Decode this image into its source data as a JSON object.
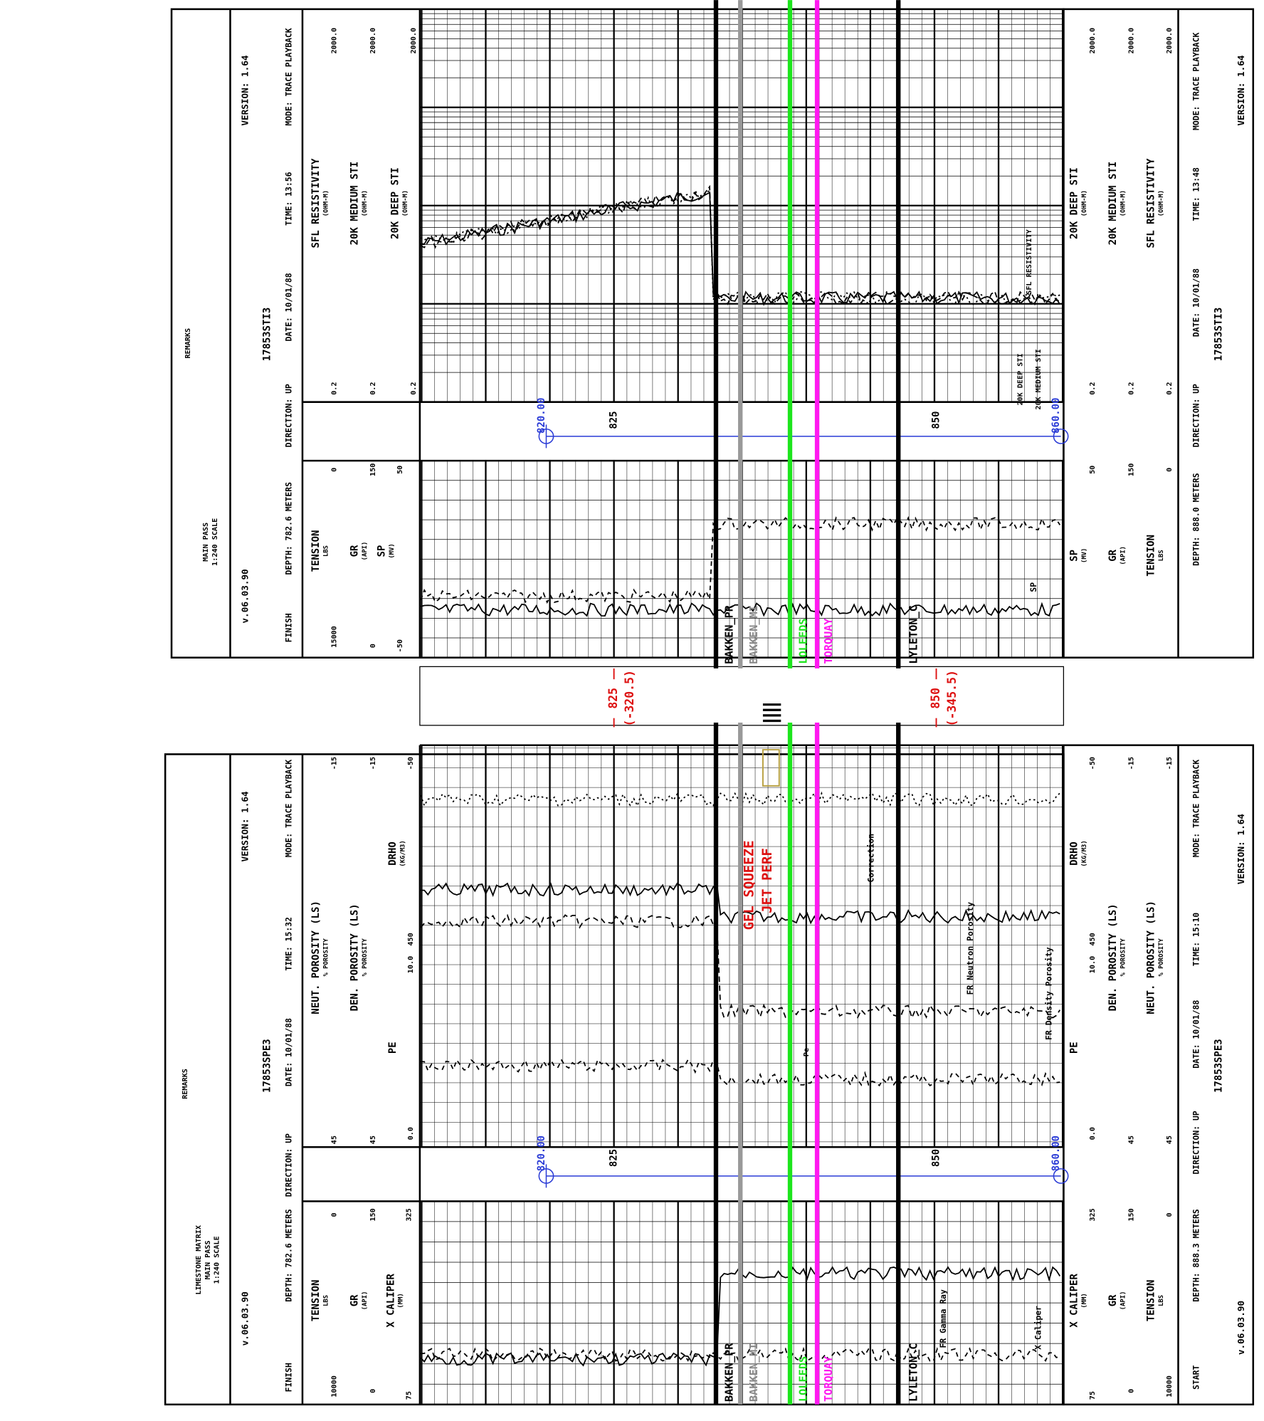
{
  "top_log": {
    "remarks": "REMARKS",
    "pass": "MAIN PASS",
    "scale": "1:240 SCALE",
    "software": "v.06.03.90",
    "version": "VERSION: 1.64",
    "file": "17853STI3",
    "status": "FINISH",
    "depth": "DEPTH: 782.6 METERS",
    "direction": "DIRECTION: UP",
    "date": "DATE: 10/01/88",
    "time": "TIME: 13:56",
    "mode": "MODE: TRACE PLAYBACK",
    "curves": [
      {
        "name": "TENSION",
        "unit": "LBS",
        "left": "15000",
        "right": "0"
      },
      {
        "name": "GR",
        "unit": "(API)",
        "left": "0",
        "right": "150"
      },
      {
        "name": "SP",
        "unit": "(MV)",
        "left": "-50",
        "right": "50"
      },
      {
        "name": "SFL RESISTIVITY",
        "unit": "(OHM-M)",
        "left": "0.2",
        "right": "2000.0"
      },
      {
        "name": "20K MEDIUM STI",
        "unit": "(OHM-M)",
        "left": "0.2",
        "right": "2000.0"
      },
      {
        "name": "20K DEEP STI",
        "unit": "(OHM-M)",
        "left": "0.2",
        "right": "2000.0"
      }
    ],
    "right": {
      "curves": [
        {
          "name": "20K DEEP STI",
          "unit": "(OHM-M)",
          "left": "0.2",
          "right": "2000.0"
        },
        {
          "name": "20K MEDIUM STI",
          "unit": "(OHM-M)",
          "left": "0.2",
          "right": "2000.0"
        },
        {
          "name": "SFL RESISTIVITY",
          "unit": "(OHM-M)",
          "left": "0.2",
          "right": "2000.0"
        },
        {
          "name": "SP",
          "unit": "(MV)",
          "right": "50"
        },
        {
          "name": "GR",
          "unit": "(API)",
          "right": "150"
        },
        {
          "name": "TENSION",
          "unit": "LBS",
          "right": "0"
        }
      ],
      "depth": "DEPTH: 888.0 METERS",
      "direction": "DIRECTION: UP",
      "date": "DATE: 10/01/88",
      "time": "TIME: 13:48",
      "mode": "MODE: TRACE PLAYBACK",
      "version": "VERSION: 1.64",
      "file": "17853STI3"
    },
    "depth_track": [
      "820.00",
      "825",
      "850",
      "860.00"
    ],
    "annotations": [
      "SFL RESISTIVITY",
      "20K DEEP STI",
      "20K MEDIUM STI",
      "SP"
    ]
  },
  "separator": {
    "top_depth": "825",
    "top_subsea": "(-320.5)",
    "bottom_depth": "850",
    "bottom_subsea": "(-345.5)"
  },
  "formation_tops": [
    "BAKKEN_PR",
    "BAKKEN_MI",
    "LOLEEDS",
    "TORQUAY",
    "LYLETON_C"
  ],
  "bottom_log": {
    "remarks": "REMARKS",
    "matrix": "LIMESTONE MATRIX",
    "pass": "MAIN PASS",
    "scale": "1:240 SCALE",
    "software": "v.06.03.90",
    "version": "VERSION: 1.64",
    "file": "17853SPE3",
    "status": "FINISH",
    "depth": "DEPTH: 782.6 METERS",
    "direction": "DIRECTION: UP",
    "date": "DATE: 10/01/88",
    "time": "TIME: 15:32",
    "mode": "MODE: TRACE PLAYBACK",
    "curves": [
      {
        "name": "TENSION",
        "unit": "LBS",
        "left": "10000",
        "right": "0"
      },
      {
        "name": "GR",
        "unit": "(API)",
        "left": "0",
        "right": "150"
      },
      {
        "name": "X CALIPER",
        "unit": "(MM)",
        "left": "75",
        "right": "325"
      },
      {
        "name": "NEUT. POROSITY (LS)",
        "unit": "% POROSITY",
        "left": "45",
        "right": "-15"
      },
      {
        "name": "DEN. POROSITY (LS)",
        "unit": "% POROSITY",
        "left": "45",
        "right": "-15"
      },
      {
        "name": "PE",
        "left": "0.0",
        "right": "10.0"
      },
      {
        "name": "DRHO",
        "unit": "(KG/M3)",
        "left": "450",
        "right": "-50"
      }
    ],
    "right": {
      "curves": [
        {
          "name": "X CALIPER",
          "unit": "(MM)",
          "left": "75",
          "right": "325"
        },
        {
          "name": "GR",
          "unit": "(API)",
          "left": "0",
          "right": "150"
        },
        {
          "name": "TENSION",
          "unit": "LBS",
          "left": "10000",
          "right": "0"
        },
        {
          "name": "DRHO",
          "unit": "(KG/M3)",
          "left": "450",
          "right": "-50"
        },
        {
          "name": "PE",
          "left": "0.0",
          "right": "10.0"
        },
        {
          "name": "DEN. POROSITY (LS)",
          "unit": "% POROSITY",
          "left": "45",
          "right": "-15"
        },
        {
          "name": "NEUT. POROSITY (LS)",
          "unit": "% POROSITY",
          "left": "45",
          "right": "-15"
        }
      ],
      "status": "START",
      "depth": "DEPTH: 888.3 METERS",
      "direction": "DIRECTION: UP",
      "date": "DATE: 10/01/88",
      "time": "TIME: 15:10",
      "mode": "MODE: TRACE PLAYBACK",
      "version": "VERSION: 1.64",
      "file": "17853SPE3",
      "software": "v.06.03.90"
    },
    "depth_track": [
      "820.00",
      "825",
      "850",
      "860.00"
    ],
    "annotations": [
      "GEL SQUEEZE",
      "JET PERF",
      "Correction",
      "FR Neutron Porosity",
      "FR Density Porosity",
      "Pe",
      "FR Gamma Ray",
      "X Caliper"
    ]
  }
}
